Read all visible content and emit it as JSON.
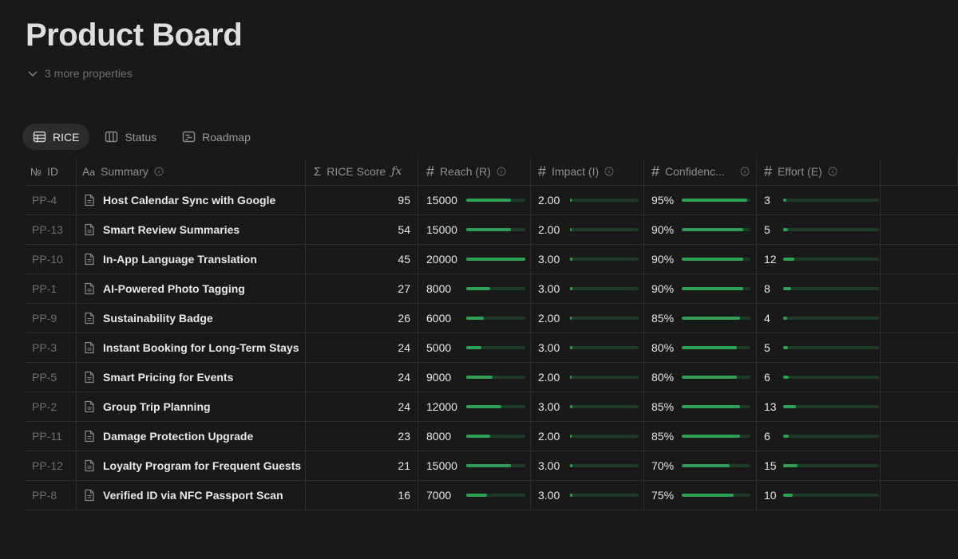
{
  "page": {
    "title": "Product Board",
    "more_properties": "3 more properties"
  },
  "views": [
    {
      "label": "RICE",
      "icon": "table-icon",
      "active": true
    },
    {
      "label": "Status",
      "icon": "board-icon",
      "active": false
    },
    {
      "label": "Roadmap",
      "icon": "timeline-icon",
      "active": false
    }
  ],
  "columns": {
    "id": "ID",
    "summary": "Summary",
    "score": "RICE Score",
    "reach": "Reach (R)",
    "impact": "Impact (I)",
    "confidence": "Confidenc...",
    "effort": "Effort (E)"
  },
  "colors": {
    "bar_fill": "#2f9e57",
    "bar_track": "#1f3a29"
  },
  "rows": [
    {
      "id": "PP-4",
      "summary": "Host Calendar Sync with Google",
      "score": "95",
      "reach": "15000",
      "reach_pct": 0.75,
      "impact": "2.00",
      "impact_pct": 0.02,
      "confidence": "95%",
      "confidence_pct": 0.95,
      "effort": "3",
      "effort_pct": 0.03
    },
    {
      "id": "PP-13",
      "summary": "Smart Review Summaries",
      "score": "54",
      "reach": "15000",
      "reach_pct": 0.75,
      "impact": "2.00",
      "impact_pct": 0.02,
      "confidence": "90%",
      "confidence_pct": 0.9,
      "effort": "5",
      "effort_pct": 0.05
    },
    {
      "id": "PP-10",
      "summary": "In-App Language Translation",
      "score": "45",
      "reach": "20000",
      "reach_pct": 1.0,
      "impact": "3.00",
      "impact_pct": 0.03,
      "confidence": "90%",
      "confidence_pct": 0.9,
      "effort": "12",
      "effort_pct": 0.12
    },
    {
      "id": "PP-1",
      "summary": "AI-Powered Photo Tagging",
      "score": "27",
      "reach": "8000",
      "reach_pct": 0.4,
      "impact": "3.00",
      "impact_pct": 0.03,
      "confidence": "90%",
      "confidence_pct": 0.9,
      "effort": "8",
      "effort_pct": 0.08
    },
    {
      "id": "PP-9",
      "summary": "Sustainability Badge",
      "score": "26",
      "reach": "6000",
      "reach_pct": 0.3,
      "impact": "2.00",
      "impact_pct": 0.02,
      "confidence": "85%",
      "confidence_pct": 0.85,
      "effort": "4",
      "effort_pct": 0.04
    },
    {
      "id": "PP-3",
      "summary": "Instant Booking for Long-Term Stays",
      "score": "24",
      "reach": "5000",
      "reach_pct": 0.25,
      "impact": "3.00",
      "impact_pct": 0.03,
      "confidence": "80%",
      "confidence_pct": 0.8,
      "effort": "5",
      "effort_pct": 0.05
    },
    {
      "id": "PP-5",
      "summary": "Smart Pricing for Events",
      "score": "24",
      "reach": "9000",
      "reach_pct": 0.45,
      "impact": "2.00",
      "impact_pct": 0.02,
      "confidence": "80%",
      "confidence_pct": 0.8,
      "effort": "6",
      "effort_pct": 0.06
    },
    {
      "id": "PP-2",
      "summary": "Group Trip Planning",
      "score": "24",
      "reach": "12000",
      "reach_pct": 0.6,
      "impact": "3.00",
      "impact_pct": 0.03,
      "confidence": "85%",
      "confidence_pct": 0.85,
      "effort": "13",
      "effort_pct": 0.13
    },
    {
      "id": "PP-11",
      "summary": "Damage Protection Upgrade",
      "score": "23",
      "reach": "8000",
      "reach_pct": 0.4,
      "impact": "2.00",
      "impact_pct": 0.02,
      "confidence": "85%",
      "confidence_pct": 0.85,
      "effort": "6",
      "effort_pct": 0.06
    },
    {
      "id": "PP-12",
      "summary": "Loyalty Program for Frequent Guests",
      "score": "21",
      "reach": "15000",
      "reach_pct": 0.75,
      "impact": "3.00",
      "impact_pct": 0.03,
      "confidence": "70%",
      "confidence_pct": 0.7,
      "effort": "15",
      "effort_pct": 0.15
    },
    {
      "id": "PP-8",
      "summary": "Verified ID via NFC Passport Scan",
      "score": "16",
      "reach": "7000",
      "reach_pct": 0.35,
      "impact": "3.00",
      "impact_pct": 0.03,
      "confidence": "75%",
      "confidence_pct": 0.75,
      "effort": "10",
      "effort_pct": 0.1
    }
  ]
}
